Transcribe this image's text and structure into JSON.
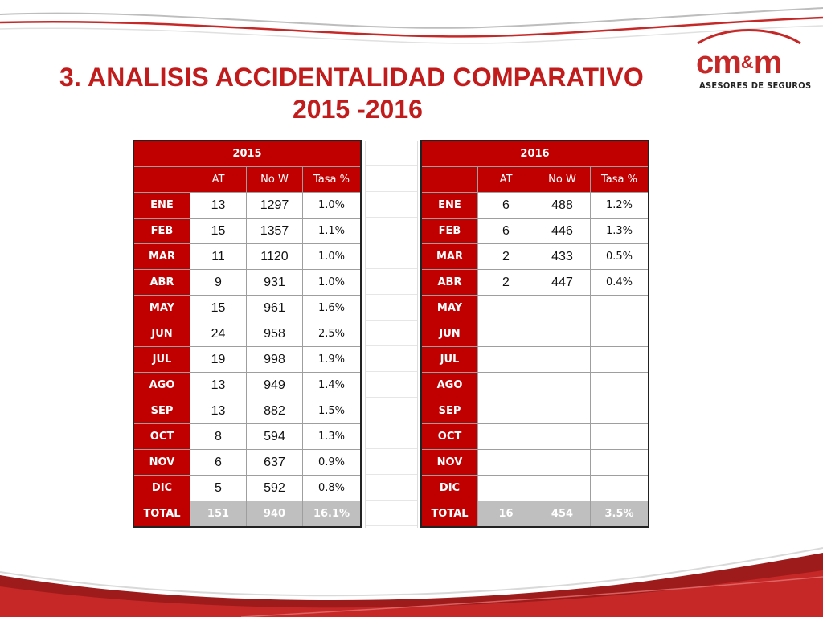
{
  "title": {
    "line1": "3.  ANALISIS ACCIDENTALIDAD COMPARATIVO",
    "line2": "2015 -2016"
  },
  "logo": {
    "word_left": "cm",
    "word_amp": "&",
    "word_right": "m",
    "tagline": "ASESORES DE SEGUROS"
  },
  "colors": {
    "header_red": "#c00000",
    "title_red": "#c11b1b",
    "total_gray": "#bfbfbf"
  },
  "columns": {
    "at": "AT",
    "now": "No W",
    "tasa": "Tasa %"
  },
  "table2015": {
    "year": "2015",
    "rows": [
      {
        "month": "ENE",
        "at": "13",
        "now": "1297",
        "tasa": "1.0%"
      },
      {
        "month": "FEB",
        "at": "15",
        "now": "1357",
        "tasa": "1.1%"
      },
      {
        "month": "MAR",
        "at": "11",
        "now": "1120",
        "tasa": "1.0%"
      },
      {
        "month": "ABR",
        "at": "9",
        "now": "931",
        "tasa": "1.0%"
      },
      {
        "month": "MAY",
        "at": "15",
        "now": "961",
        "tasa": "1.6%"
      },
      {
        "month": "JUN",
        "at": "24",
        "now": "958",
        "tasa": "2.5%"
      },
      {
        "month": "JUL",
        "at": "19",
        "now": "998",
        "tasa": "1.9%"
      },
      {
        "month": "AGO",
        "at": "13",
        "now": "949",
        "tasa": "1.4%"
      },
      {
        "month": "SEP",
        "at": "13",
        "now": "882",
        "tasa": "1.5%"
      },
      {
        "month": "OCT",
        "at": "8",
        "now": "594",
        "tasa": "1.3%"
      },
      {
        "month": "NOV",
        "at": "6",
        "now": "637",
        "tasa": "0.9%"
      },
      {
        "month": "DIC",
        "at": "5",
        "now": "592",
        "tasa": "0.8%"
      }
    ],
    "total": {
      "label": "TOTAL",
      "at": "151",
      "now": "940",
      "tasa": "16.1%"
    }
  },
  "table2016": {
    "year": "2016",
    "rows": [
      {
        "month": "ENE",
        "at": "6",
        "now": "488",
        "tasa": "1.2%"
      },
      {
        "month": "FEB",
        "at": "6",
        "now": "446",
        "tasa": "1.3%"
      },
      {
        "month": "MAR",
        "at": "2",
        "now": "433",
        "tasa": "0.5%"
      },
      {
        "month": "ABR",
        "at": "2",
        "now": "447",
        "tasa": "0.4%"
      },
      {
        "month": "MAY",
        "at": "",
        "now": "",
        "tasa": ""
      },
      {
        "month": "JUN",
        "at": "",
        "now": "",
        "tasa": ""
      },
      {
        "month": "JUL",
        "at": "",
        "now": "",
        "tasa": ""
      },
      {
        "month": "AGO",
        "at": "",
        "now": "",
        "tasa": ""
      },
      {
        "month": "SEP",
        "at": "",
        "now": "",
        "tasa": ""
      },
      {
        "month": "OCT",
        "at": "",
        "now": "",
        "tasa": ""
      },
      {
        "month": "NOV",
        "at": "",
        "now": "",
        "tasa": ""
      },
      {
        "month": "DIC",
        "at": "",
        "now": "",
        "tasa": ""
      }
    ],
    "total": {
      "label": "TOTAL",
      "at": "16",
      "now": "454",
      "tasa": "3.5%"
    }
  }
}
